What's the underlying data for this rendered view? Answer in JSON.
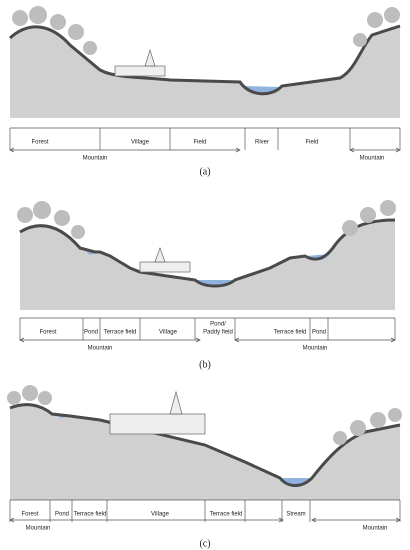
{
  "panels": [
    {
      "caption": "(a)",
      "zones": [
        "Forest",
        "Village",
        "Field",
        "River",
        "Field"
      ],
      "ranges": [
        "Mountain",
        "Mountain"
      ]
    },
    {
      "caption": "(b)",
      "zones": [
        "Forest",
        "Pond",
        "Terrace field",
        "Village",
        [
          "Pond/",
          "Paddy field"
        ],
        "Terrace field",
        "Pond"
      ],
      "ranges": [
        "Mountain",
        "Mountain"
      ]
    },
    {
      "caption": "(c)",
      "zones": [
        "Forest",
        "Pond",
        "Terrace field",
        "Village",
        "Terrace field",
        "Stream"
      ],
      "ranges": [
        "Mountain",
        "Mountain"
      ]
    }
  ]
}
